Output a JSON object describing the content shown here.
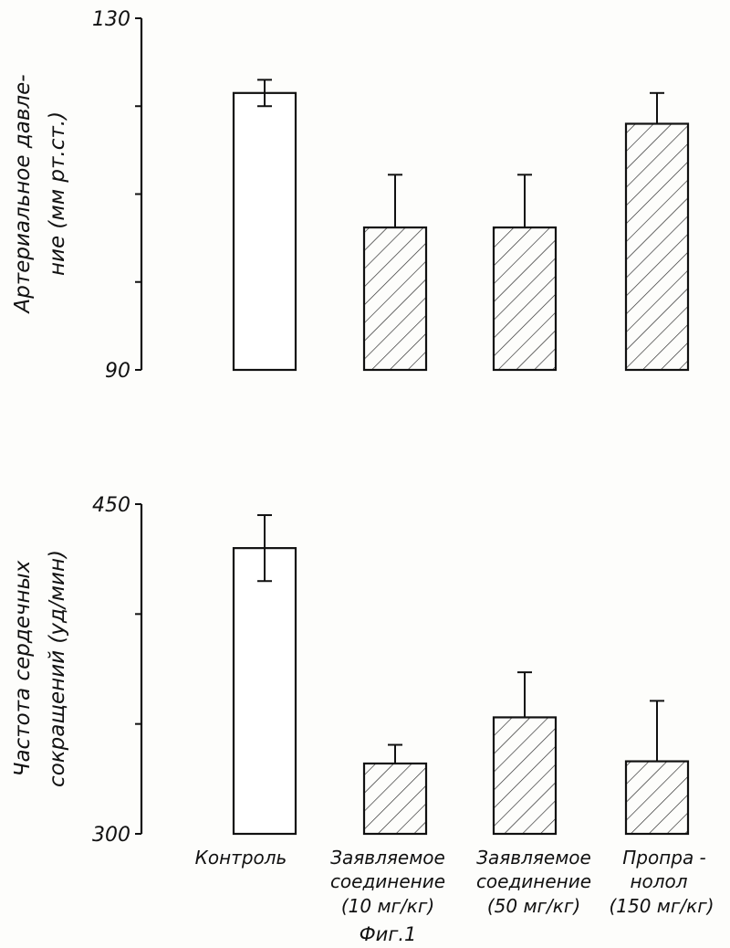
{
  "chart_data": [
    {
      "type": "bar",
      "ylabel": [
        "Артериальное давле-",
        "ние (мм рт.ст.)"
      ],
      "ylim": [
        90,
        130
      ],
      "yticks": [
        90,
        100,
        110,
        120,
        130
      ],
      "ytick_labels": [
        "90",
        "",
        "",
        "",
        "130"
      ],
      "categories": [
        "Контроль",
        "Заявляемое соединение (10 мг/кг)",
        "Заявляемое соединение (50 мг/кг)",
        "Пропранолол (150 мг/кг)"
      ],
      "values": [
        121.5,
        106.2,
        106.2,
        118
      ],
      "errors": [
        1.5,
        6,
        6,
        3.5
      ],
      "hatched": [
        false,
        true,
        true,
        true
      ],
      "grid": false
    },
    {
      "type": "bar",
      "ylabel": [
        "Частота сердечных",
        "сокращений (уд/мин)"
      ],
      "ylim": [
        300,
        450
      ],
      "yticks": [
        300,
        350,
        400,
        450
      ],
      "ytick_labels": [
        "300",
        "",
        "",
        "450"
      ],
      "categories": [
        "Контроль",
        "Заявляемое соединение (10 мг/кг)",
        "Заявляемое соединение (50 мг/кг)",
        "Пропранолол (150 мг/кг)"
      ],
      "values": [
        430,
        332,
        353,
        333
      ],
      "errors": [
        15,
        8.5,
        20.5,
        27.5
      ],
      "hatched": [
        false,
        true,
        true,
        true
      ],
      "grid": false
    }
  ],
  "labels": {
    "cat1": [
      "Контроль"
    ],
    "cat2": [
      "Заявляемое",
      "соединение",
      "(10 мг/кг)"
    ],
    "cat3": [
      "Заявляемое",
      "соединение",
      "(50 мг/кг)"
    ],
    "cat4": [
      "Пропра -",
      "нолол",
      "(150 мг/кг)"
    ],
    "figure_caption": "Фиг.1"
  }
}
